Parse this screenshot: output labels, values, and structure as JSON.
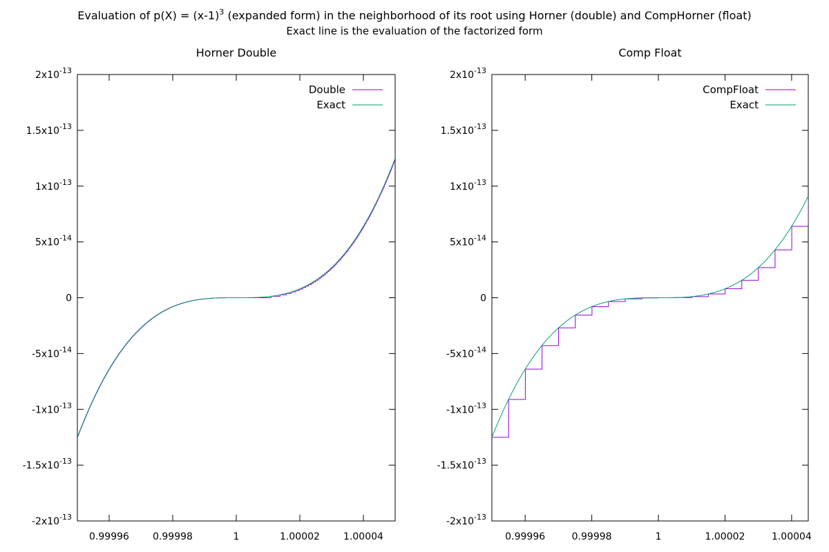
{
  "figure": {
    "title_prefix": "Evaluation of p(X) = (x-1)",
    "title_exponent": "3",
    "title_suffix": " (expanded form) in the neighborhood of its root using Horner (double) and CompHorner (float)",
    "subtitle": "Exact line is the evaluation of the factorized form"
  },
  "colors": {
    "series_primary": "#9400d3",
    "series_exact": "#009e73"
  },
  "chart_data": [
    {
      "type": "line",
      "title": "Horner Double",
      "xlim": [
        0.99995,
        1.00005
      ],
      "ylim": [
        -2e-13,
        2e-13
      ],
      "x_ticks": [
        {
          "value": 0.99996,
          "label": "0.99996"
        },
        {
          "value": 0.99998,
          "label": "0.99998"
        },
        {
          "value": 1.0,
          "label": "1"
        },
        {
          "value": 1.00002,
          "label": "1.00002"
        },
        {
          "value": 1.00004,
          "label": "1.00004"
        }
      ],
      "y_ticks": [
        {
          "value": 2e-13,
          "mant": "2x10",
          "exp": "-13"
        },
        {
          "value": 1.5e-13,
          "mant": "1.5x10",
          "exp": "-13"
        },
        {
          "value": 1e-13,
          "mant": "1x10",
          "exp": "-13"
        },
        {
          "value": 5e-14,
          "mant": "5x10",
          "exp": "-14"
        },
        {
          "value": 0,
          "mant": "0",
          "exp": ""
        },
        {
          "value": -5e-14,
          "mant": "-5x10",
          "exp": "-14"
        },
        {
          "value": -1e-13,
          "mant": "-1x10",
          "exp": "-13"
        },
        {
          "value": -1.5e-13,
          "mant": "-1.5x10",
          "exp": "-13"
        },
        {
          "value": -2e-13,
          "mant": "-2x10",
          "exp": "-13"
        }
      ],
      "legend_position": "top-right",
      "series": [
        {
          "name": "Double",
          "function": "(x-1)^3 evaluated by Horner in double precision (step-quantized above the root)",
          "x_range": [
            0.99995,
            1.00005
          ],
          "quantum": 1.3e-15
        },
        {
          "name": "Exact",
          "function": "(x-1)^3 factorized form",
          "x_range": [
            0.99995,
            1.00005
          ]
        }
      ]
    },
    {
      "type": "line",
      "title": "Comp Float",
      "xlim": [
        0.99995,
        1.000045
      ],
      "ylim": [
        -2e-13,
        2e-13
      ],
      "x_ticks": [
        {
          "value": 0.99996,
          "label": "0.99996"
        },
        {
          "value": 0.99998,
          "label": "0.99998"
        },
        {
          "value": 1.0,
          "label": "1"
        },
        {
          "value": 1.00002,
          "label": "1.00002"
        },
        {
          "value": 1.00004,
          "label": "1.00004"
        }
      ],
      "y_ticks": [
        {
          "value": 2e-13,
          "mant": "2x10",
          "exp": "-13"
        },
        {
          "value": 1.5e-13,
          "mant": "1.5x10",
          "exp": "-13"
        },
        {
          "value": 1e-13,
          "mant": "1x10",
          "exp": "-13"
        },
        {
          "value": 5e-14,
          "mant": "5x10",
          "exp": "-14"
        },
        {
          "value": 0,
          "mant": "0",
          "exp": ""
        },
        {
          "value": -5e-14,
          "mant": "-5x10",
          "exp": "-14"
        },
        {
          "value": -1e-13,
          "mant": "-1x10",
          "exp": "-13"
        },
        {
          "value": -1.5e-13,
          "mant": "-1.5x10",
          "exp": "-13"
        },
        {
          "value": -2e-13,
          "mant": "-2x10",
          "exp": "-13"
        }
      ],
      "legend_position": "top-right",
      "series": [
        {
          "name": "CompFloat",
          "function": "(x-1)^3 evaluated by compensated Horner in float (x quantized to float spacing)",
          "x_range": [
            0.99995,
            1.000045
          ],
          "x_step": 5e-06
        },
        {
          "name": "Exact",
          "function": "(x-1)^3 factorized form",
          "x_range": [
            0.99995,
            1.000045
          ]
        }
      ]
    }
  ]
}
